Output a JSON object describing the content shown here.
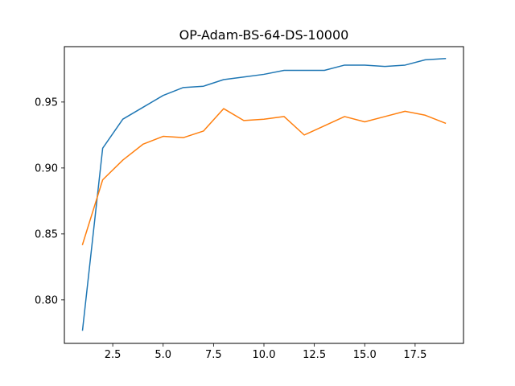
{
  "chart_data": {
    "type": "line",
    "title": "OP-Adam-BS-64-DS-10000",
    "xlabel": "",
    "ylabel": "",
    "xlim": [
      0.1,
      19.9
    ],
    "ylim": [
      0.767,
      0.992
    ],
    "xticks": [
      2.5,
      5.0,
      7.5,
      10.0,
      12.5,
      15.0,
      17.5
    ],
    "xtick_labels": [
      "2.5",
      "5.0",
      "7.5",
      "10.0",
      "12.5",
      "15.0",
      "17.5"
    ],
    "yticks": [
      0.8,
      0.85,
      0.9,
      0.95
    ],
    "ytick_labels": [
      "0.80",
      "0.85",
      "0.90",
      "0.95"
    ],
    "grid": false,
    "legend": "none",
    "x": [
      1,
      2,
      3,
      4,
      5,
      6,
      7,
      8,
      9,
      10,
      11,
      12,
      13,
      14,
      15,
      16,
      17,
      18,
      19
    ],
    "series": [
      {
        "color": "#1f77b4",
        "values": [
          0.777,
          0.915,
          0.937,
          0.946,
          0.955,
          0.961,
          0.962,
          0.967,
          0.969,
          0.971,
          0.974,
          0.974,
          0.974,
          0.978,
          0.978,
          0.977,
          0.978,
          0.982,
          0.983
        ]
      },
      {
        "color": "#ff7f0e",
        "values": [
          0.842,
          0.891,
          0.906,
          0.918,
          0.924,
          0.923,
          0.928,
          0.945,
          0.936,
          0.937,
          0.939,
          0.925,
          0.932,
          0.939,
          0.935,
          0.939,
          0.943,
          0.94,
          0.934
        ]
      }
    ]
  }
}
